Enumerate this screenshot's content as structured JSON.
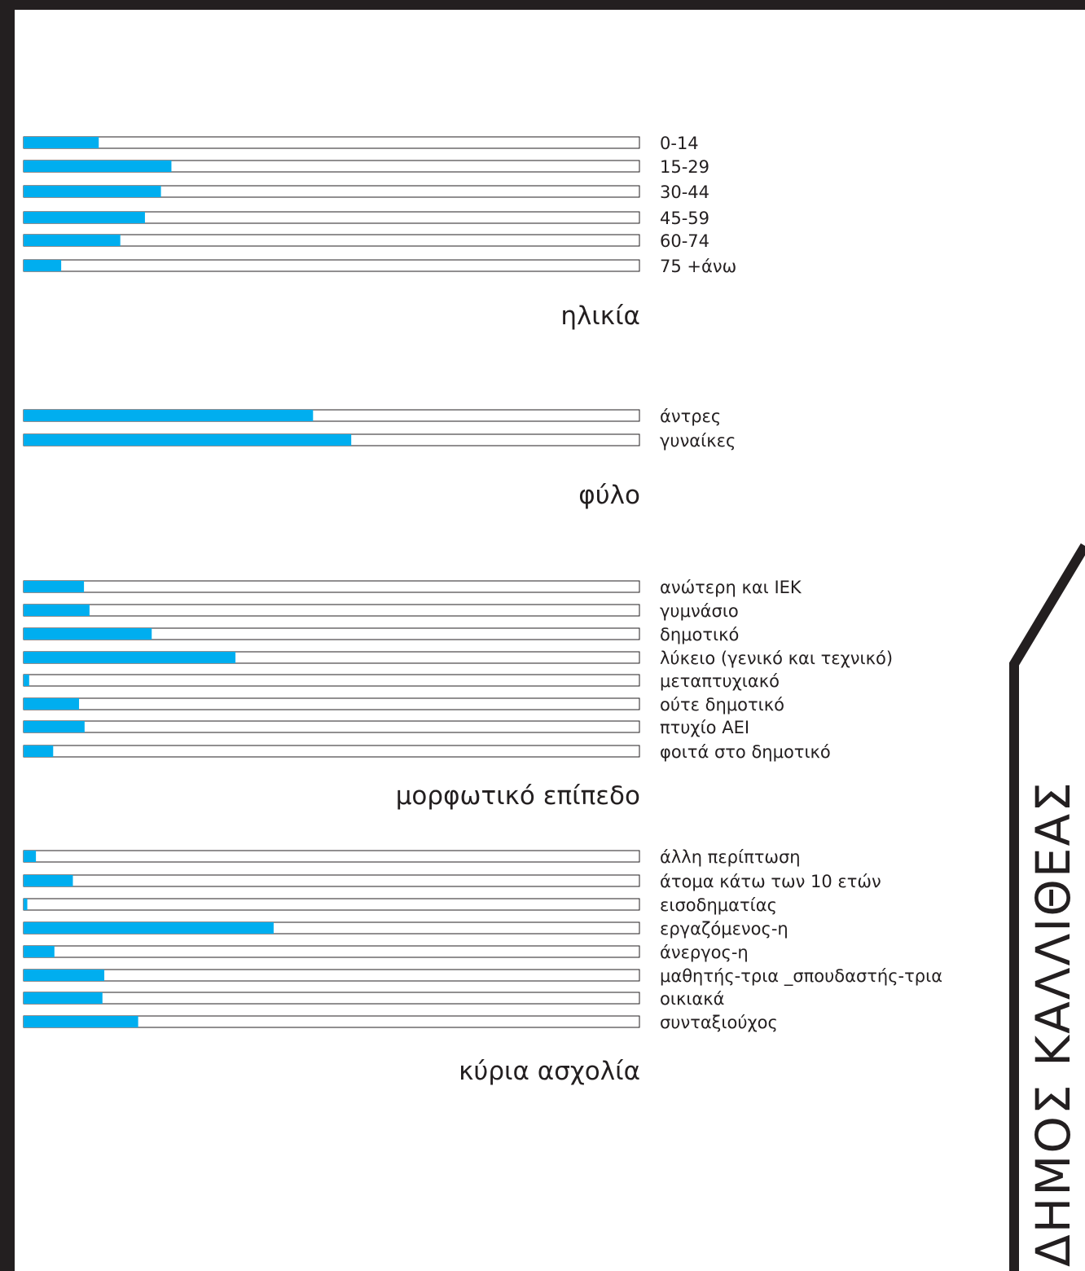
{
  "colors": {
    "bar_fill": "#00aeef",
    "bar_outline": "#231f20",
    "frame": "#231f20"
  },
  "vertical_title": "ΔΗΜΟΣ ΚΑΛΛΙΘΕΑΣ",
  "chart_data": [
    {
      "type": "bar",
      "orientation": "horizontal",
      "title": "ηλικία",
      "categories": [
        "0-14",
        "15-29",
        "30-44",
        "45-59",
        "60-74",
        "75 +άνω"
      ],
      "values": [
        12.2,
        24.0,
        22.3,
        19.7,
        15.7,
        6.1
      ],
      "xlim": [
        0,
        100
      ]
    },
    {
      "type": "bar",
      "orientation": "horizontal",
      "title": "φύλο",
      "categories": [
        "άντρες",
        "γυναίκες"
      ],
      "values": [
        47.0,
        53.2
      ],
      "xlim": [
        0,
        100
      ]
    },
    {
      "type": "bar",
      "orientation": "horizontal",
      "title": "μορφωτικό επίπεδο",
      "categories": [
        "ανώτερη και ΙΕΚ",
        "γυμνάσιο",
        "δημοτικό",
        "λύκειο (γενικό και τεχνικό)",
        "μεταπτυχιακό",
        "ούτε δημοτικό",
        "πτυχίο ΑΕΙ",
        "φοιτά στο δημοτικό"
      ],
      "values": [
        9.8,
        10.7,
        20.8,
        34.4,
        0.9,
        9.0,
        9.9,
        4.8
      ],
      "xlim": [
        0,
        100
      ]
    },
    {
      "type": "bar",
      "orientation": "horizontal",
      "title": "κύρια ασχολία",
      "categories": [
        "άλλη περίπτωση",
        "άτομα κάτω των 10 ετών",
        "εισοδηματίας",
        "εργαζόμενος-η",
        "άνεργος-η",
        "μαθητής-τρια _σπουδαστής-τρια",
        "οικιακά",
        "συνταξιούχος"
      ],
      "values": [
        2.0,
        8.0,
        0.6,
        40.6,
        5.0,
        13.1,
        12.8,
        18.6
      ],
      "xlim": [
        0,
        100
      ]
    }
  ]
}
